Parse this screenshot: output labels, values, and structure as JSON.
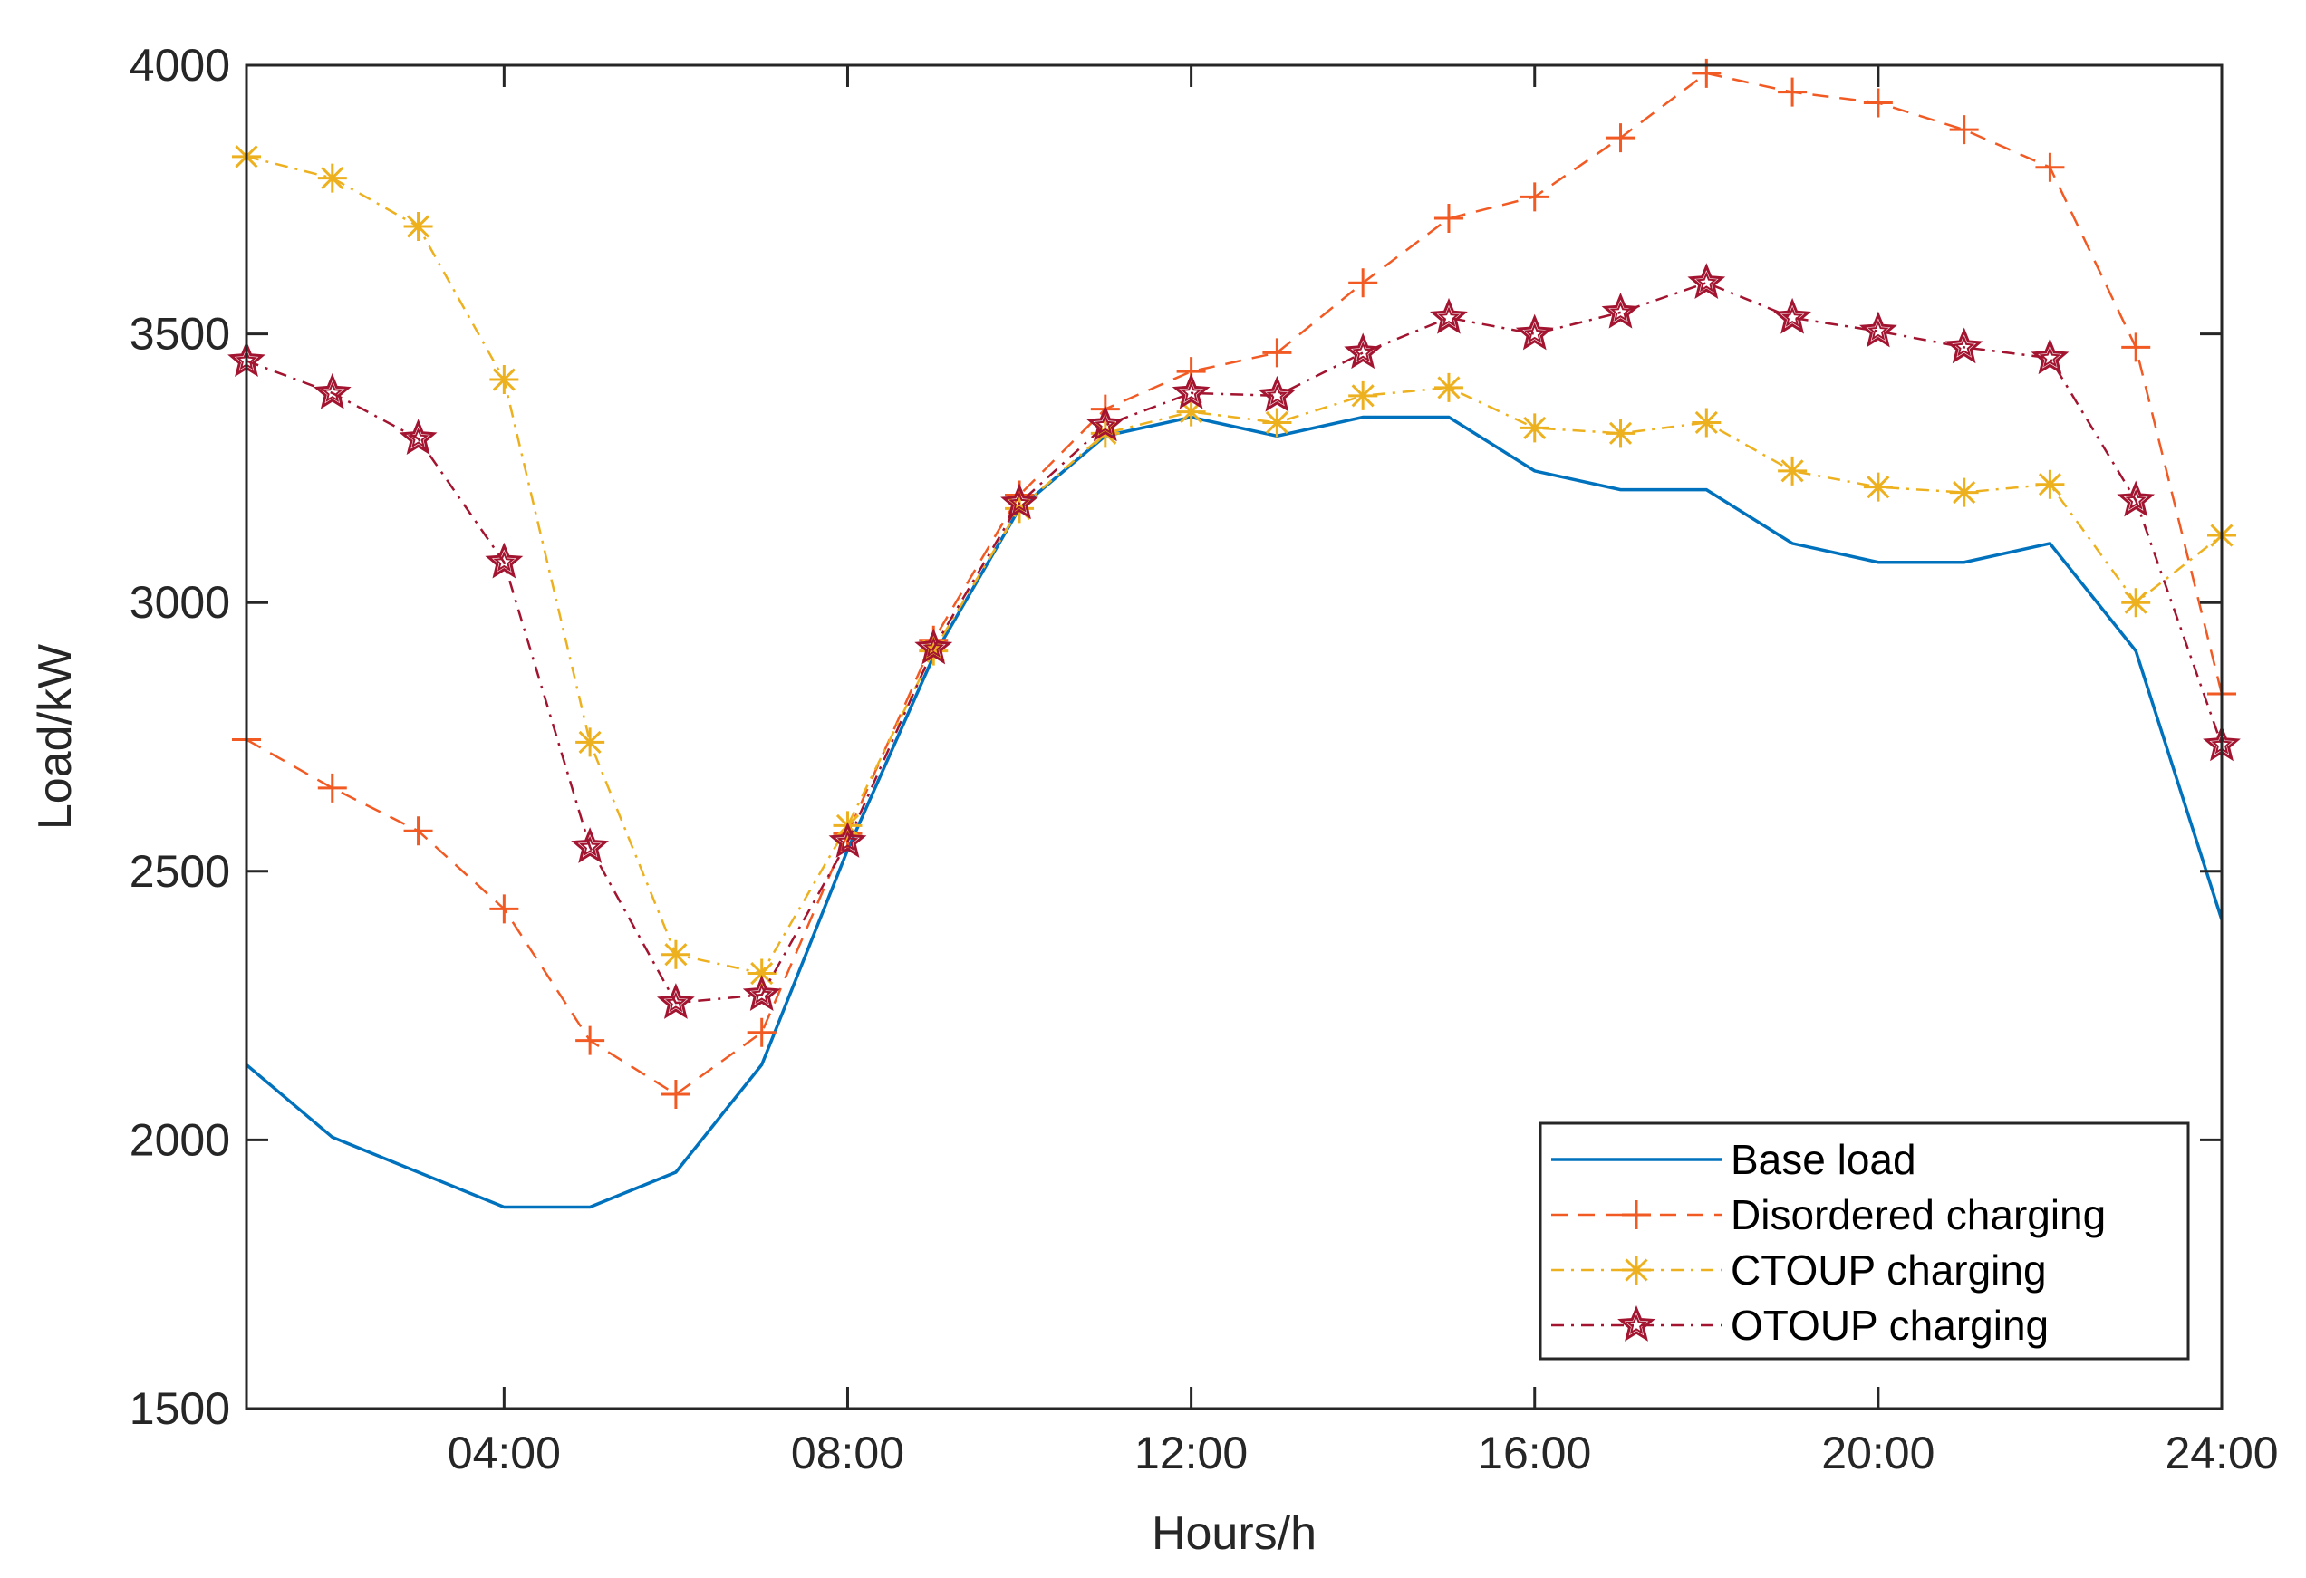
{
  "chart_data": {
    "type": "line",
    "xlabel": "Hours/h",
    "ylabel": "Load/kW",
    "xlim": [
      1,
      24
    ],
    "ylim": [
      1500,
      4000
    ],
    "x": [
      1,
      2,
      3,
      4,
      5,
      6,
      7,
      8,
      9,
      10,
      11,
      12,
      13,
      14,
      15,
      16,
      17,
      18,
      19,
      20,
      21,
      22,
      23,
      24
    ],
    "xticks": [
      {
        "value": 4,
        "label": "04:00"
      },
      {
        "value": 8,
        "label": "08:00"
      },
      {
        "value": 12,
        "label": "12:00"
      },
      {
        "value": 16,
        "label": "16:00"
      },
      {
        "value": 20,
        "label": "20:00"
      },
      {
        "value": 24,
        "label": "24:00"
      }
    ],
    "yticks": [
      {
        "value": 1500,
        "label": "1500"
      },
      {
        "value": 2000,
        "label": "2000"
      },
      {
        "value": 2500,
        "label": "2500"
      },
      {
        "value": 3000,
        "label": "3000"
      },
      {
        "value": 3500,
        "label": "3500"
      },
      {
        "value": 4000,
        "label": "4000"
      }
    ],
    "grid": false,
    "legend_position": "bottom-right",
    "series": [
      {
        "name": "Base load",
        "color": "#0072BD",
        "dash": "solid",
        "marker": "none",
        "values": [
          2140,
          2005,
          1940,
          1875,
          1875,
          1940,
          2140,
          2540,
          2900,
          3175,
          3310,
          3345,
          3310,
          3345,
          3345,
          3245,
          3210,
          3210,
          3110,
          3075,
          3075,
          3110,
          2910,
          2410
        ]
      },
      {
        "name": "Disordered charging",
        "color": "#F25A24",
        "dash": "dashed",
        "marker": "plus",
        "values": [
          2745,
          2655,
          2575,
          2430,
          2185,
          2085,
          2200,
          2570,
          2930,
          3200,
          3360,
          3430,
          3465,
          3595,
          3715,
          3755,
          3865,
          3985,
          3950,
          3930,
          3880,
          3810,
          3475,
          2830
        ]
      },
      {
        "name": "CTOUP charging",
        "color": "#EDB120",
        "dash": "dashdot",
        "marker": "asterisk",
        "values": [
          3830,
          3790,
          3700,
          3415,
          2740,
          2345,
          2310,
          2585,
          2910,
          3175,
          3315,
          3355,
          3335,
          3385,
          3400,
          3325,
          3315,
          3335,
          3245,
          3215,
          3205,
          3220,
          3000,
          3125
        ]
      },
      {
        "name": "OTOUP charging",
        "color": "#A2142F",
        "dash": "dashdot",
        "marker": "star",
        "values": [
          3450,
          3390,
          3305,
          3075,
          2545,
          2255,
          2270,
          2555,
          2915,
          3185,
          3330,
          3390,
          3385,
          3465,
          3530,
          3500,
          3540,
          3595,
          3530,
          3505,
          3475,
          3455,
          3190,
          2735
        ]
      }
    ]
  }
}
